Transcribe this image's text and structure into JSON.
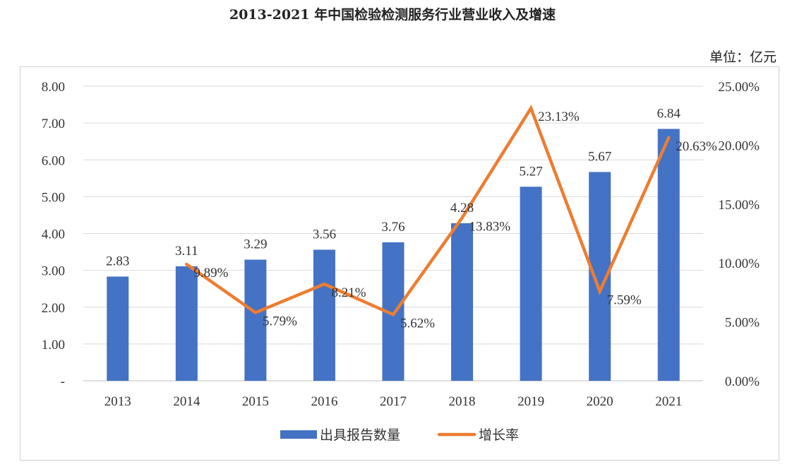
{
  "chart_data": {
    "type": "bar",
    "title": "2013-2021 年中国检验检测服务行业营业收入及增速",
    "unit_label": "单位：亿元",
    "categories": [
      "2013",
      "2014",
      "2015",
      "2016",
      "2017",
      "2018",
      "2019",
      "2020",
      "2021"
    ],
    "series": [
      {
        "name": "出具报告数量",
        "type": "bar",
        "axis": "left",
        "values": [
          2.83,
          3.11,
          3.29,
          3.56,
          3.76,
          4.28,
          5.27,
          5.67,
          6.84
        ],
        "labels": [
          "2.83",
          "3.11",
          "3.29",
          "3.56",
          "3.76",
          "4.28",
          "5.27",
          "5.67",
          "6.84"
        ],
        "color": "#4472C4"
      },
      {
        "name": "增长率",
        "type": "line",
        "axis": "right",
        "values": [
          null,
          9.89,
          5.79,
          8.21,
          5.62,
          13.83,
          23.13,
          7.59,
          20.63
        ],
        "labels": [
          null,
          "9.89%",
          "5.79%",
          "8.21%",
          "5.62%",
          "13.83%",
          "23.13%",
          "7.59%",
          "20.63%"
        ],
        "color": "#ED7D31"
      }
    ],
    "y_left": {
      "ylim": [
        0,
        8
      ],
      "ticks": [
        0,
        1,
        2,
        3,
        4,
        5,
        6,
        7,
        8
      ],
      "tick_labels": [
        "-",
        "1.00",
        "2.00",
        "3.00",
        "4.00",
        "5.00",
        "6.00",
        "7.00",
        "8.00"
      ]
    },
    "y_right": {
      "ylim": [
        0,
        25
      ],
      "ticks": [
        0,
        5,
        10,
        15,
        20,
        25
      ],
      "tick_labels": [
        "0.00%",
        "5.00%",
        "10.00%",
        "15.00%",
        "20.00%",
        "25.00%"
      ]
    },
    "grid": true,
    "legend_position": "bottom"
  }
}
